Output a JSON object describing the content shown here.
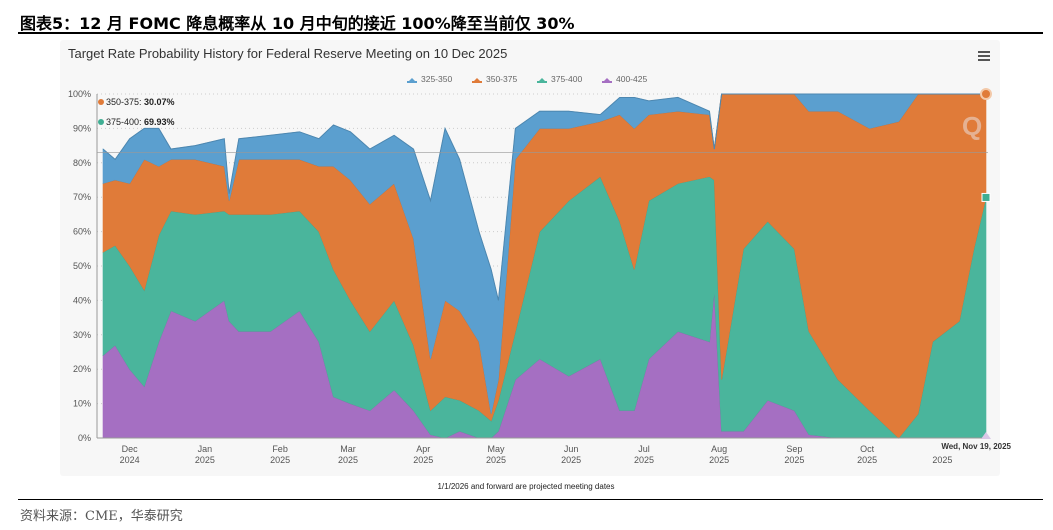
{
  "figure_title": "图表5：12 月 FOMC 降息概率从 10 月中旬的接近 100%降至当前仅 30%",
  "source": "资料来源：CME，华泰研究",
  "footnote": "1/1/2026 and forward are projected meeting dates",
  "menu_icon": "hamburger-menu-icon",
  "watermark": "Q",
  "tooltip": {
    "date": "Wed, Nov 19, 2025",
    "items": [
      {
        "label": "350-375: ",
        "value": "30.07%",
        "color": "#e07b39"
      },
      {
        "label": "375-400: ",
        "value": "69.93%",
        "color": "#3fae93"
      }
    ]
  },
  "chart_data": {
    "type": "area",
    "stacked": true,
    "title": "Target Rate Probability History for Federal Reserve Meeting on 10 Dec 2025",
    "xlabel": "",
    "ylabel": "",
    "ylim": [
      0,
      100
    ],
    "grid": true,
    "legend_position": "top-right",
    "y_ticks": [
      "0%",
      "10%",
      "20%",
      "30%",
      "40%",
      "50%",
      "60%",
      "70%",
      "80%",
      "90%",
      "100%"
    ],
    "x_ticks": [
      {
        "date": "2024-12-01",
        "month": "Dec",
        "year": "2024"
      },
      {
        "date": "2025-01-01",
        "month": "Jan",
        "year": "2025"
      },
      {
        "date": "2025-02-01",
        "month": "Feb",
        "year": "2025"
      },
      {
        "date": "2025-03-01",
        "month": "Mar",
        "year": "2025"
      },
      {
        "date": "2025-04-01",
        "month": "Apr",
        "year": "2025"
      },
      {
        "date": "2025-05-01",
        "month": "May",
        "year": "2025"
      },
      {
        "date": "2025-06-01",
        "month": "Jun",
        "year": "2025"
      },
      {
        "date": "2025-07-01",
        "month": "Jul",
        "year": "2025"
      },
      {
        "date": "2025-08-01",
        "month": "Aug",
        "year": "2025"
      },
      {
        "date": "2025-09-01",
        "month": "Sep",
        "year": "2025"
      },
      {
        "date": "2025-10-01",
        "month": "Oct",
        "year": "2025"
      },
      {
        "date": "2025-11-01",
        "month": "",
        "year": "2025"
      }
    ],
    "x": [
      "2024-11-20",
      "2024-11-25",
      "2024-12-01",
      "2024-12-07",
      "2024-12-13",
      "2024-12-18",
      "2024-12-28",
      "2025-01-09",
      "2025-01-11",
      "2025-01-15",
      "2025-01-28",
      "2025-02-09",
      "2025-02-17",
      "2025-02-23",
      "2025-03-02",
      "2025-03-10",
      "2025-03-20",
      "2025-03-28",
      "2025-04-04",
      "2025-04-10",
      "2025-04-16",
      "2025-04-24",
      "2025-04-29",
      "2025-05-02",
      "2025-05-09",
      "2025-05-19",
      "2025-05-31",
      "2025-06-13",
      "2025-06-21",
      "2025-06-27",
      "2025-07-03",
      "2025-07-15",
      "2025-07-28",
      "2025-07-30",
      "2025-08-02",
      "2025-08-11",
      "2025-08-21",
      "2025-09-01",
      "2025-09-07",
      "2025-09-19",
      "2025-10-02",
      "2025-10-14",
      "2025-10-22",
      "2025-10-28",
      "2025-11-08",
      "2025-11-14",
      "2025-11-19"
    ],
    "series": [
      {
        "name": "400-425",
        "color": "#a56fc2",
        "values": [
          24,
          27,
          20,
          15,
          28,
          37,
          34,
          40,
          34,
          31,
          31,
          37,
          28,
          12,
          10,
          8,
          14,
          8,
          1,
          0,
          2,
          0,
          0,
          2,
          17,
          23,
          18,
          23,
          8,
          8,
          23,
          31,
          28,
          43,
          2,
          2,
          11,
          8,
          1,
          0,
          0,
          0,
          0,
          0,
          0,
          0,
          0
        ]
      },
      {
        "name": "375-400",
        "color": "#4ab59c",
        "values": [
          30,
          29,
          30,
          28,
          31,
          29,
          31,
          26,
          31,
          34,
          34,
          29,
          32,
          37,
          30,
          23,
          26,
          19,
          7,
          12,
          9,
          8,
          5,
          9,
          14,
          37,
          51,
          53,
          55,
          41,
          46,
          43,
          48,
          32,
          15,
          53,
          52,
          47,
          30,
          17,
          8,
          0,
          7,
          28,
          34,
          55,
          69.93
        ]
      },
      {
        "name": "350-375",
        "color": "#e07b39",
        "values": [
          20,
          19,
          24,
          38,
          20,
          15,
          16,
          13,
          4,
          16,
          16,
          15,
          19,
          30,
          35,
          37,
          34,
          31,
          15,
          28,
          26,
          20,
          2,
          6,
          50,
          30,
          21,
          16,
          31,
          41,
          25,
          21,
          18,
          9,
          83,
          45,
          37,
          45,
          64,
          78,
          82,
          92,
          93,
          72,
          66,
          45,
          30.07
        ]
      },
      {
        "name": "325-350",
        "color": "#5b9fcf",
        "values": [
          10,
          6,
          13,
          9,
          11,
          3,
          4,
          8,
          2,
          6,
          7,
          8,
          8,
          12,
          14,
          16,
          14,
          26,
          46,
          50,
          44,
          32,
          42,
          23,
          9,
          5,
          5,
          2,
          5,
          9,
          4,
          4,
          1,
          0,
          0,
          0,
          0,
          0,
          5,
          5,
          10,
          8,
          0,
          0,
          0,
          0,
          0
        ]
      }
    ]
  }
}
